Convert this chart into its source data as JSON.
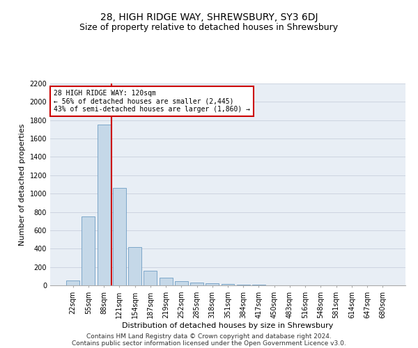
{
  "title": "28, HIGH RIDGE WAY, SHREWSBURY, SY3 6DJ",
  "subtitle": "Size of property relative to detached houses in Shrewsbury",
  "xlabel": "Distribution of detached houses by size in Shrewsbury",
  "ylabel": "Number of detached properties",
  "footnote1": "Contains HM Land Registry data © Crown copyright and database right 2024.",
  "footnote2": "Contains public sector information licensed under the Open Government Licence v3.0.",
  "categories": [
    "22sqm",
    "55sqm",
    "88sqm",
    "121sqm",
    "154sqm",
    "187sqm",
    "219sqm",
    "252sqm",
    "285sqm",
    "318sqm",
    "351sqm",
    "384sqm",
    "417sqm",
    "450sqm",
    "483sqm",
    "516sqm",
    "548sqm",
    "581sqm",
    "614sqm",
    "647sqm",
    "680sqm"
  ],
  "values": [
    50,
    750,
    1750,
    1060,
    420,
    160,
    80,
    45,
    30,
    25,
    15,
    5,
    5,
    0,
    0,
    0,
    0,
    0,
    0,
    0,
    0
  ],
  "bar_color": "#c5d8e8",
  "bar_edge_color": "#5a8fbb",
  "grid_color": "#c8d0dc",
  "bg_color": "#e8eef5",
  "annotation_box_color": "#cc0000",
  "annotation_line_color": "#cc0000",
  "annotation_text": "28 HIGH RIDGE WAY: 120sqm\n← 56% of detached houses are smaller (2,445)\n43% of semi-detached houses are larger (1,860) →",
  "ylim": [
    0,
    2200
  ],
  "yticks": [
    0,
    200,
    400,
    600,
    800,
    1000,
    1200,
    1400,
    1600,
    1800,
    2000,
    2200
  ],
  "title_fontsize": 10,
  "subtitle_fontsize": 9,
  "xlabel_fontsize": 8,
  "ylabel_fontsize": 8,
  "tick_fontsize": 7,
  "footnote_fontsize": 6.5
}
